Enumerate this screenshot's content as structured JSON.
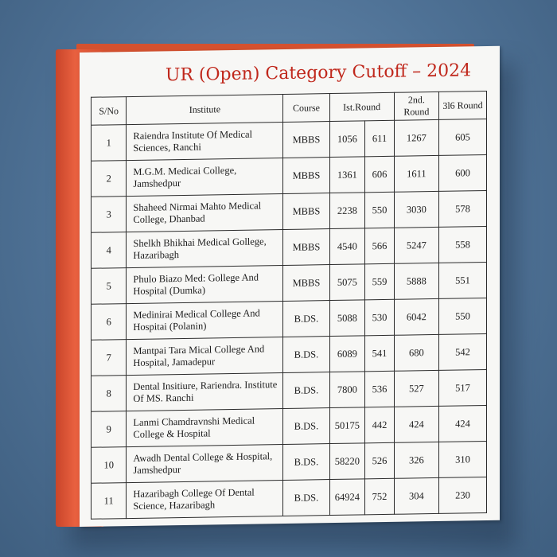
{
  "title": "UR (Open) Category Cutoff – 2024",
  "table": {
    "headers": {
      "sno": "S/No",
      "institute": "Institute",
      "course": "Course",
      "round1": "Ist.Round",
      "round2": "2nd. Round",
      "round3": "3l6 Round"
    },
    "rows": [
      {
        "sno": "1",
        "institute": "Raiendra Institute Of Medical Sciences, Ranchi",
        "course": "MBBS",
        "r1_rank": "1056",
        "r1_score": "611",
        "r2": "1267",
        "r3": "605"
      },
      {
        "sno": "2",
        "institute": "M.G.M. Medicai College, Jamshedpur",
        "course": "MBBS",
        "r1_rank": "1361",
        "r1_score": "606",
        "r2": "1611",
        "r3": "600"
      },
      {
        "sno": "3",
        "institute": "Shaheed Nirmai Mahto Medical College, Dhanbad",
        "course": "MBBS",
        "r1_rank": "2238",
        "r1_score": "550",
        "r2": "3030",
        "r3": "578"
      },
      {
        "sno": "4",
        "institute": "Shelkh Bhikhai Medical Gollege, Hazaribagh",
        "course": "MBBS",
        "r1_rank": "4540",
        "r1_score": "566",
        "r2": "5247",
        "r3": "558"
      },
      {
        "sno": "5",
        "institute": "Phulo Biazo Med: Gollege And Hospital (Dumka)",
        "course": "MBBS",
        "r1_rank": "5075",
        "r1_score": "559",
        "r2": "5888",
        "r3": "551"
      },
      {
        "sno": "6",
        "institute": "Medinirai Medical College And Hospitai (Polanin)",
        "course": "B.DS.",
        "r1_rank": "5088",
        "r1_score": "530",
        "r2": "6042",
        "r3": "550"
      },
      {
        "sno": "7",
        "institute": "Mantpai Tara Mical College And Hospital, Jamadepur",
        "course": "B.DS.",
        "r1_rank": "6089",
        "r1_score": "541",
        "r2": "680",
        "r3": "542"
      },
      {
        "sno": "8",
        "institute": "Dental Insitiure, Rariendra. Institute Of MS. Ranchi",
        "course": "B.DS.",
        "r1_rank": "7800",
        "r1_score": "536",
        "r2": "527",
        "r3": "517"
      },
      {
        "sno": "9",
        "institute": "Lanmi Chamdravnshi Medical College & Hospital",
        "course": "B.DS.",
        "r1_rank": "50175",
        "r1_score": "442",
        "r2": "424",
        "r3": "424"
      },
      {
        "sno": "10",
        "institute": "Awadh Dental College & Hospital, Jamshedpur",
        "course": "B.DS.",
        "r1_rank": "58220",
        "r1_score": "526",
        "r2": "326",
        "r3": "310"
      },
      {
        "sno": "11",
        "institute": "Hazaribagh College Of Dental Science, Hazaribagh",
        "course": "B.DS.",
        "r1_rank": "64924",
        "r1_score": "752",
        "r2": "304",
        "r3": "230"
      }
    ]
  },
  "colors": {
    "title": "#c0281c",
    "binder": "#e0583a",
    "background": "#5a7ea3",
    "paper": "#f7f7f5"
  }
}
